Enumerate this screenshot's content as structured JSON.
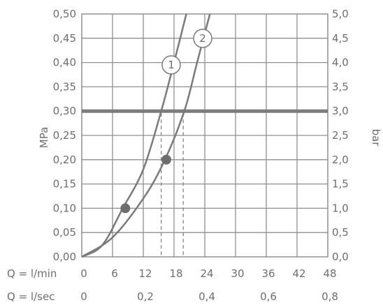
{
  "chart_data": {
    "type": "line",
    "y_left": {
      "label": "MPa",
      "ticks": [
        "0,00",
        "0,05",
        "0,10",
        "0,15",
        "0,20",
        "0,25",
        "0,30",
        "0,35",
        "0,40",
        "0,45",
        "0,50"
      ],
      "range": [
        0,
        0.5
      ]
    },
    "y_right": {
      "label": "bar",
      "ticks": [
        "0,0",
        "0,5",
        "1,0",
        "1,5",
        "2,0",
        "2,5",
        "3,0",
        "3,5",
        "4,0",
        "4,5",
        "5,0"
      ],
      "range": [
        0,
        5
      ]
    },
    "x_lmin": {
      "label": "Q = l/min",
      "ticks": [
        "0",
        "6",
        "12",
        "18",
        "24",
        "30",
        "36",
        "42",
        "48"
      ],
      "range": [
        0,
        48
      ]
    },
    "x_lsec": {
      "label": "Q = l/sec",
      "ticks": [
        "0",
        "0,2",
        "0,4",
        "0,6",
        "0,8"
      ],
      "range": [
        0,
        0.8
      ]
    },
    "reference_line": {
      "y": 0.3
    },
    "series": [
      {
        "name": "1",
        "points": [
          [
            0,
            0
          ],
          [
            4,
            0.024
          ],
          [
            8,
            0.1
          ],
          [
            12,
            0.18
          ],
          [
            15.5,
            0.3
          ],
          [
            18,
            0.4
          ],
          [
            20.4,
            0.5
          ]
        ],
        "marker": [
          8.5,
          0.1
        ],
        "drop_x": 15.5
      },
      {
        "name": "2",
        "points": [
          [
            0,
            0
          ],
          [
            6,
            0.04
          ],
          [
            12,
            0.12
          ],
          [
            16,
            0.195
          ],
          [
            20,
            0.3
          ],
          [
            22.5,
            0.4
          ],
          [
            25,
            0.5
          ]
        ],
        "marker": [
          16.5,
          0.2
        ],
        "drop_x": 19.8
      }
    ],
    "grid": true
  }
}
